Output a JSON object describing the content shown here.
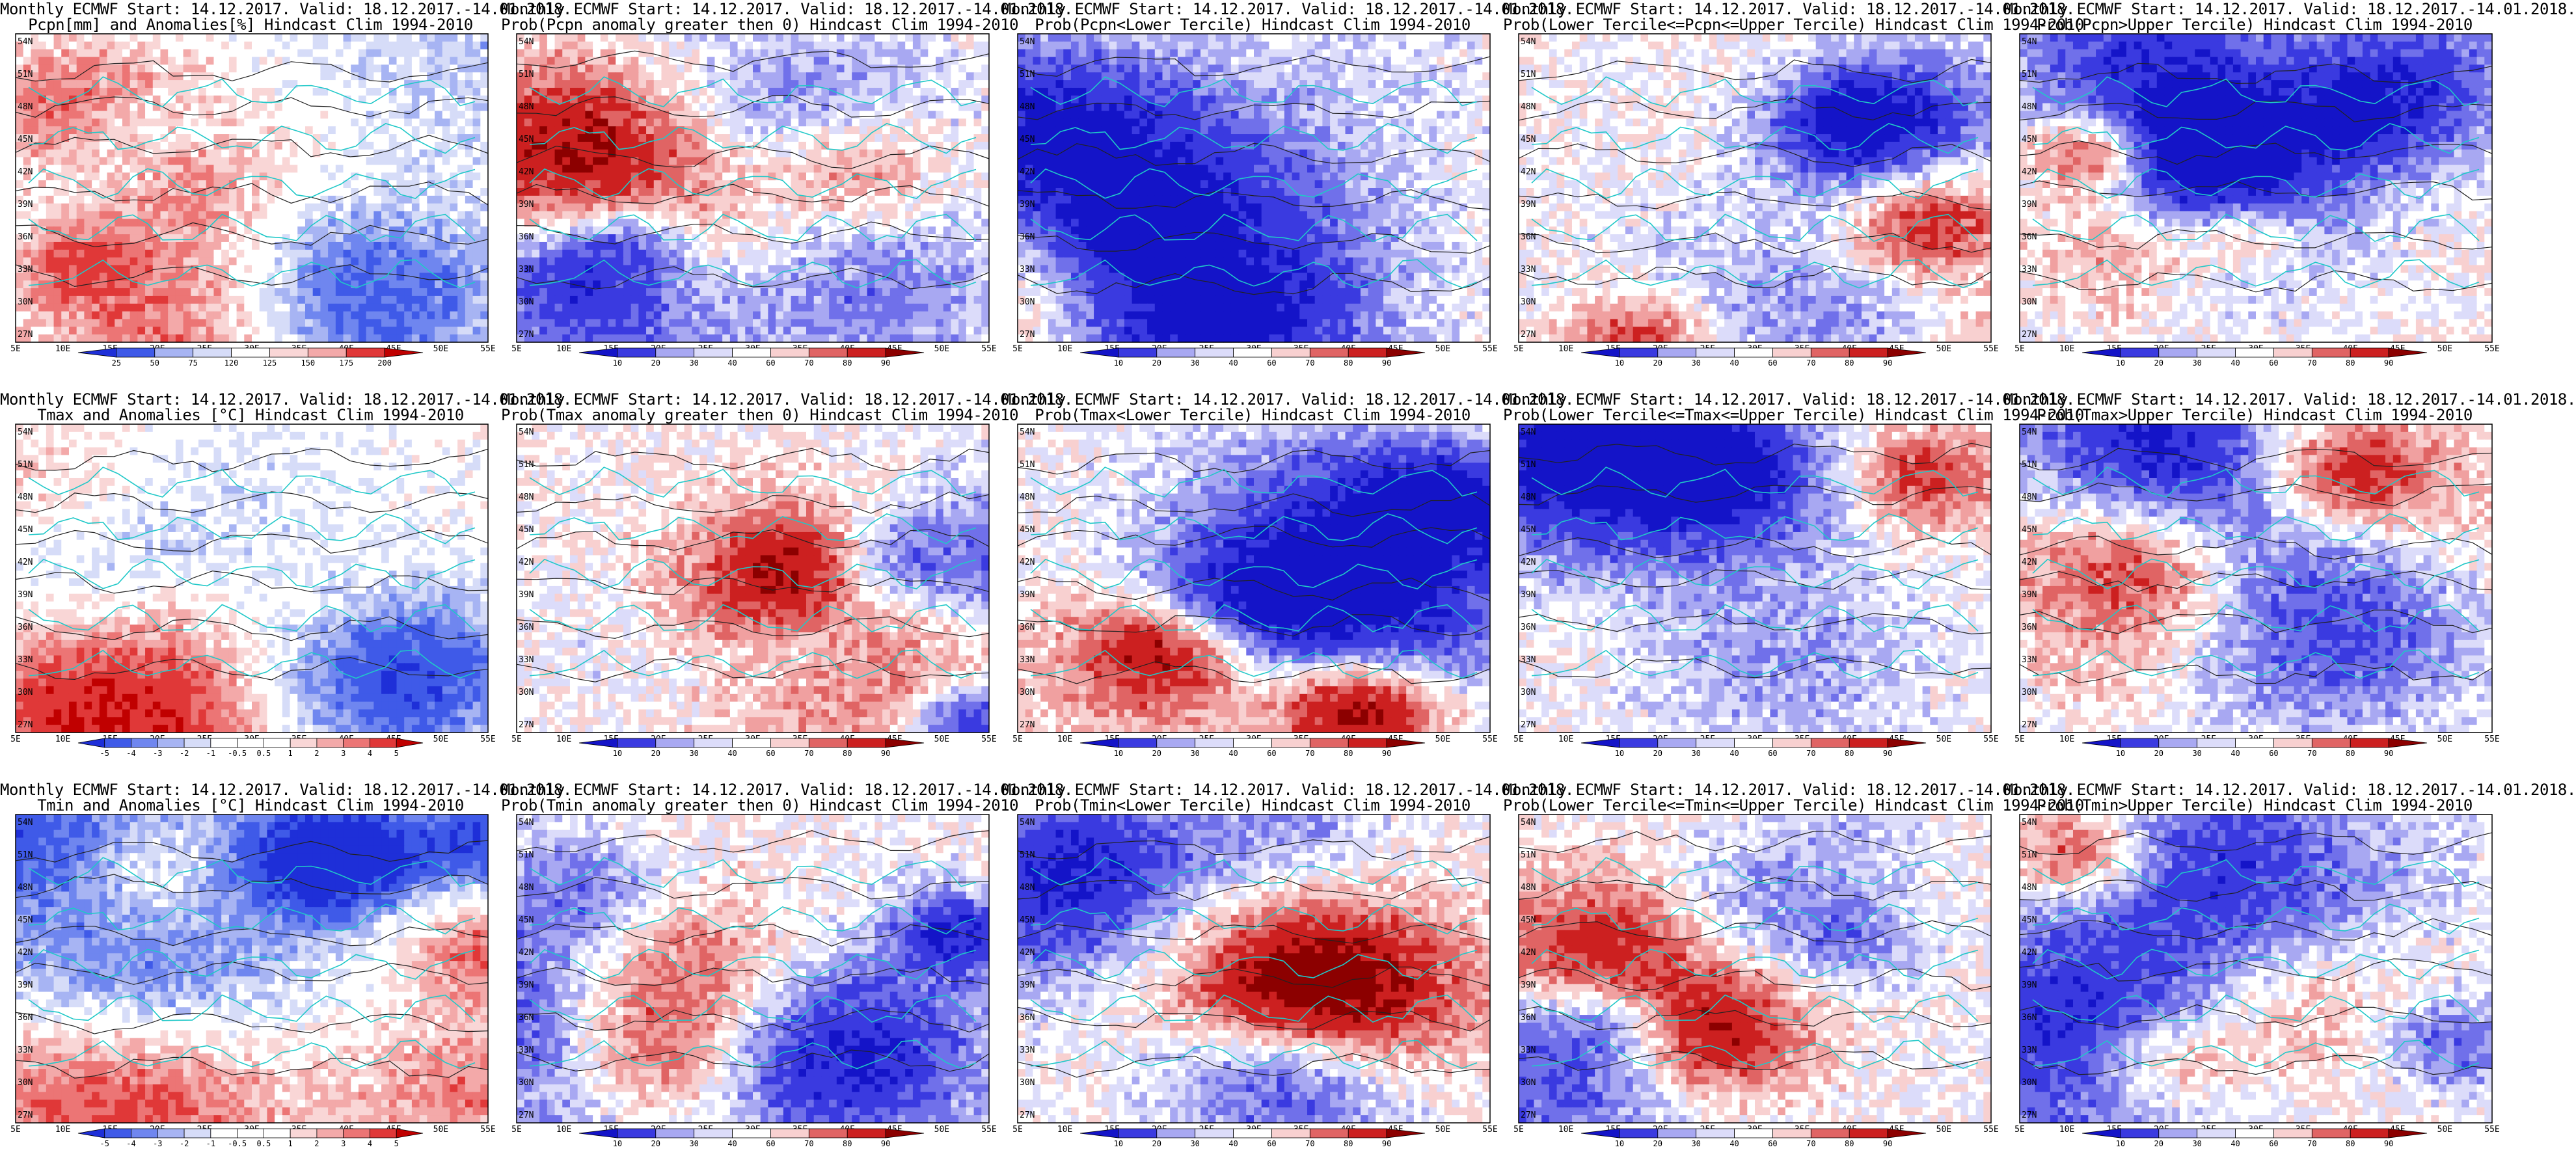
{
  "palettes": {
    "anom": [
      "#1e2fd8",
      "#3f5ae8",
      "#6f86ef",
      "#a7b4f3",
      "#d6dcf8",
      "#ffffff",
      "#ffffff",
      "#f9d6d6",
      "#f3a9a9",
      "#ec7575",
      "#e03838",
      "#c00000"
    ],
    "prob": [
      "#1414c8",
      "#3a3ae0",
      "#7070ea",
      "#a8a8f2",
      "#dcdcfa",
      "#ffffff",
      "#f8d0d0",
      "#f0a0a0",
      "#e06464",
      "#cc2020",
      "#8c0000"
    ]
  },
  "axis": {
    "lat_labels": [
      "54N",
      "51N",
      "48N",
      "45N",
      "42N",
      "39N",
      "36N",
      "33N",
      "30N",
      "27N"
    ],
    "lon_labels": [
      "5E",
      "10E",
      "15E",
      "20E",
      "25E",
      "30E",
      "35E",
      "40E",
      "45E",
      "50E",
      "55E"
    ]
  },
  "panels": [
    {
      "title1": "Monthly ECMWF Start: 14.12.2017. Valid: 18.12.2017.-14.01.2018.",
      "title2": "Pcpn[mm] and Anomalies[%] Hindcast Clim 1994-2010",
      "palette": "anom",
      "cbar_labels": [
        "25",
        "50",
        "75",
        "120",
        "125",
        "150",
        "175",
        "200"
      ],
      "seed": 11
    },
    {
      "title1": "Monthly ECMWF Start: 14.12.2017. Valid: 18.12.2017.-14.01.2018.",
      "title2": "Prob(Pcpn anomaly greater then 0) Hindcast Clim 1994-2010",
      "palette": "prob",
      "cbar_labels": [
        "10",
        "20",
        "30",
        "40",
        "60",
        "70",
        "80",
        "90"
      ],
      "seed": 23
    },
    {
      "title1": "Monthly ECMWF Start: 14.12.2017. Valid: 18.12.2017.-14.01.2018.",
      "title2": "Prob(Pcpn<Lower Tercile) Hindcast Clim 1994-2010",
      "palette": "prob",
      "cbar_labels": [
        "10",
        "20",
        "30",
        "40",
        "60",
        "70",
        "80",
        "90"
      ],
      "seed": 37
    },
    {
      "title1": "Monthly ECMWF Start: 14.12.2017. Valid: 18.12.2017.-14.01.2018.",
      "title2": "Prob(Lower Tercile<=Pcpn<=Upper Tercile) Hindcast Clim 1994-2010",
      "palette": "prob",
      "cbar_labels": [
        "10",
        "20",
        "30",
        "40",
        "60",
        "70",
        "80",
        "90"
      ],
      "seed": 41
    },
    {
      "title1": "Monthly ECMWF Start: 14.12.2017. Valid: 18.12.2017.-14.01.2018.",
      "title2": "Prob(Pcpn>Upper Tercile) Hindcast Clim 1994-2010",
      "palette": "prob",
      "cbar_labels": [
        "10",
        "20",
        "30",
        "40",
        "60",
        "70",
        "80",
        "90"
      ],
      "seed": 53
    },
    {
      "title1": "Monthly ECMWF Start: 14.12.2017. Valid: 18.12.2017.-14.01.2018.",
      "title2": "Tmax and Anomalies [°C] Hindcast Clim 1994-2010",
      "palette": "anom",
      "cbar_labels": [
        "-5",
        "-4",
        "-3",
        "-2",
        "-1",
        "-0.5",
        "0.5",
        "1",
        "2",
        "3",
        "4",
        "5"
      ],
      "seed": 61
    },
    {
      "title1": "Monthly ECMWF Start: 14.12.2017. Valid: 18.12.2017.-14.01.2018.",
      "title2": "Prob(Tmax anomaly greater then 0) Hindcast Clim 1994-2010",
      "palette": "prob",
      "cbar_labels": [
        "10",
        "20",
        "30",
        "40",
        "60",
        "70",
        "80",
        "90"
      ],
      "seed": 71
    },
    {
      "title1": "Monthly ECMWF Start: 14.12.2017. Valid: 18.12.2017.-14.01.2018.",
      "title2": "Prob(Tmax<Lower Tercile) Hindcast Clim 1994-2010",
      "palette": "prob",
      "cbar_labels": [
        "10",
        "20",
        "30",
        "40",
        "60",
        "70",
        "80",
        "90"
      ],
      "seed": 83
    },
    {
      "title1": "Monthly ECMWF Start: 14.12.2017. Valid: 18.12.2017.-14.01.2018.",
      "title2": "Prob(Lower Tercile<=Tmax<=Upper Tercile) Hindcast Clim 1994-2010",
      "palette": "prob",
      "cbar_labels": [
        "10",
        "20",
        "30",
        "40",
        "60",
        "70",
        "80",
        "90"
      ],
      "seed": 97
    },
    {
      "title1": "Monthly ECMWF Start: 14.12.2017. Valid: 18.12.2017.-14.01.2018.",
      "title2": "Prob(Tmax>Upper Tercile) Hindcast Clim 1994-2010",
      "palette": "prob",
      "cbar_labels": [
        "10",
        "20",
        "30",
        "40",
        "60",
        "70",
        "80",
        "90"
      ],
      "seed": 101
    },
    {
      "title1": "Monthly ECMWF Start: 14.12.2017. Valid: 18.12.2017.-14.01.2018.",
      "title2": "Tmin and Anomalies [°C] Hindcast Clim 1994-2010",
      "palette": "anom",
      "cbar_labels": [
        "-5",
        "-4",
        "-3",
        "-2",
        "-1",
        "-0.5",
        "0.5",
        "1",
        "2",
        "3",
        "4",
        "5"
      ],
      "seed": 113
    },
    {
      "title1": "Monthly ECMWF Start: 14.12.2017. Valid: 18.12.2017.-14.01.2018.",
      "title2": "Prob(Tmin anomaly greater then 0) Hindcast Clim 1994-2010",
      "palette": "prob",
      "cbar_labels": [
        "10",
        "20",
        "30",
        "40",
        "60",
        "70",
        "80",
        "90"
      ],
      "seed": 127
    },
    {
      "title1": "Monthly ECMWF Start: 14.12.2017. Valid: 18.12.2017.-14.01.2018.",
      "title2": "Prob(Tmin<Lower Tercile) Hindcast Clim 1994-2010",
      "palette": "prob",
      "cbar_labels": [
        "10",
        "20",
        "30",
        "40",
        "60",
        "70",
        "80",
        "90"
      ],
      "seed": 131
    },
    {
      "title1": "Monthly ECMWF Start: 14.12.2017. Valid: 18.12.2017.-14.01.2018.",
      "title2": "Prob(Lower Tercile<=Tmin<=Upper Tercile) Hindcast Clim 1994-2010",
      "palette": "prob",
      "cbar_labels": [
        "10",
        "20",
        "30",
        "40",
        "60",
        "70",
        "80",
        "90"
      ],
      "seed": 137
    },
    {
      "title1": "Monthly ECMWF Start: 14.12.2017. Valid: 18.12.2017.-14.01.2018.",
      "title2": "Prob(Tmin>Upper Tercile) Hindcast Clim 1994-2010",
      "palette": "prob",
      "cbar_labels": [
        "10",
        "20",
        "30",
        "40",
        "60",
        "70",
        "80",
        "90"
      ],
      "seed": 149
    }
  ]
}
